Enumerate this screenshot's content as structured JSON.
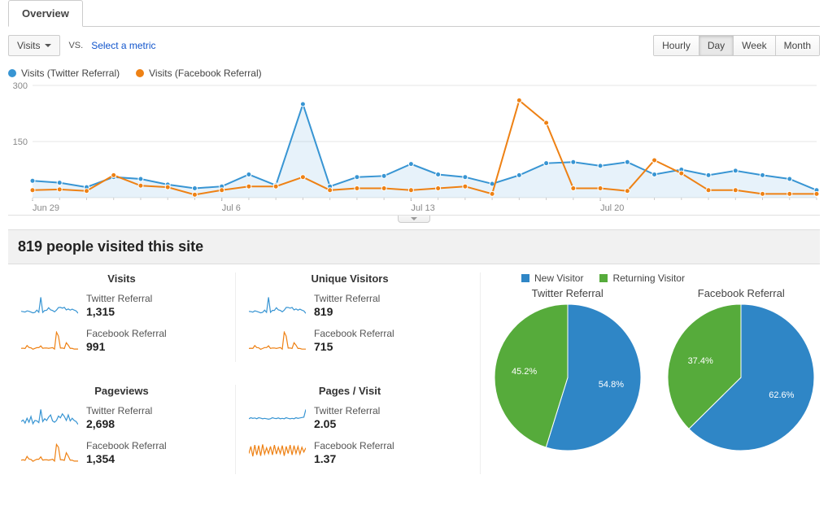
{
  "colors": {
    "twitter": "#3895d3",
    "facebook": "#ee8114",
    "new_visitor": "#2f86c6",
    "returning_visitor": "#56ab3b",
    "grid": "#e6e6e6",
    "axis_text": "#888888",
    "link": "#1155cc"
  },
  "tabs": {
    "overview": "Overview"
  },
  "controls": {
    "metric_dropdown": "Visits",
    "vs": "VS.",
    "select_metric": "Select a metric",
    "granularity": [
      "Hourly",
      "Day",
      "Week",
      "Month"
    ],
    "granularity_selected": "Day"
  },
  "main_chart": {
    "type": "line",
    "legend": [
      {
        "label": "Visits (Twitter Referral)",
        "color": "#3895d3"
      },
      {
        "label": "Visits (Facebook Referral)",
        "color": "#ee8114"
      }
    ],
    "y_ticks": [
      0,
      150,
      300
    ],
    "ylim": [
      0,
      300
    ],
    "x_tick_labels": [
      "Jun 29",
      "Jul 6",
      "Jul 13",
      "Jul 20"
    ],
    "x_tick_indices": [
      0,
      7,
      14,
      21
    ],
    "n_points": 30,
    "series": {
      "twitter": [
        45,
        40,
        28,
        55,
        50,
        35,
        25,
        30,
        62,
        33,
        250,
        30,
        55,
        58,
        90,
        62,
        55,
        37,
        60,
        92,
        95,
        85,
        95,
        62,
        75,
        60,
        72,
        60,
        50,
        20
      ],
      "facebook": [
        20,
        22,
        18,
        60,
        32,
        28,
        8,
        20,
        30,
        30,
        55,
        20,
        25,
        25,
        20,
        25,
        30,
        10,
        260,
        200,
        25,
        25,
        18,
        100,
        65,
        20,
        20,
        10,
        10,
        10
      ]
    },
    "background": "#ffffff",
    "grid_color": "#e6e6e6",
    "axis_fontsize": 11,
    "line_width": 2,
    "marker_radius": 3
  },
  "headline": "819 people visited this site",
  "metrics": [
    {
      "title": "Visits",
      "rows": [
        {
          "label": "Twitter Referral",
          "value": "1,315",
          "color": "#3895d3",
          "spark": [
            18,
            16,
            14,
            20,
            18,
            14,
            10,
            12,
            24,
            13,
            90,
            12,
            22,
            23,
            36,
            25,
            22,
            15,
            24,
            37,
            38,
            34,
            38,
            25,
            30,
            24,
            29,
            24,
            20,
            8
          ]
        },
        {
          "label": "Facebook Referral",
          "value": "991",
          "color": "#ee8114",
          "spark": [
            8,
            9,
            7,
            24,
            13,
            11,
            3,
            8,
            12,
            12,
            22,
            8,
            10,
            10,
            8,
            10,
            12,
            4,
            100,
            78,
            10,
            10,
            7,
            40,
            26,
            8,
            8,
            4,
            4,
            4
          ]
        }
      ]
    },
    {
      "title": "Unique Visitors",
      "rows": [
        {
          "label": "Twitter Referral",
          "value": "819",
          "color": "#3895d3",
          "spark": [
            14,
            13,
            11,
            16,
            14,
            11,
            8,
            10,
            19,
            10,
            72,
            10,
            18,
            18,
            29,
            20,
            18,
            12,
            19,
            30,
            30,
            27,
            30,
            20,
            24,
            19,
            23,
            19,
            16,
            6
          ]
        },
        {
          "label": "Facebook Referral",
          "value": "715",
          "color": "#ee8114",
          "spark": [
            6,
            7,
            6,
            19,
            10,
            9,
            2,
            6,
            10,
            10,
            18,
            6,
            8,
            8,
            6,
            8,
            10,
            3,
            80,
            62,
            8,
            8,
            6,
            32,
            21,
            6,
            6,
            3,
            3,
            3
          ]
        }
      ]
    },
    {
      "title": "Pageviews",
      "rows": [
        {
          "label": "Twitter Referral",
          "value": "2,698",
          "color": "#3895d3",
          "spark": [
            25,
            32,
            18,
            40,
            22,
            48,
            15,
            30,
            28,
            20,
            80,
            25,
            38,
            30,
            45,
            55,
            28,
            22,
            30,
            50,
            42,
            60,
            48,
            30,
            55,
            28,
            40,
            30,
            25,
            12
          ]
        },
        {
          "label": "Facebook Referral",
          "value": "1,354",
          "color": "#ee8114",
          "spark": [
            10,
            12,
            9,
            30,
            16,
            14,
            4,
            10,
            15,
            15,
            28,
            10,
            12,
            12,
            10,
            12,
            15,
            5,
            95,
            80,
            12,
            12,
            9,
            50,
            32,
            10,
            10,
            5,
            5,
            5
          ]
        }
      ]
    },
    {
      "title": "Pages / Visit",
      "rows": [
        {
          "label": "Twitter Referral",
          "value": "2.05",
          "color": "#3895d3",
          "spark": [
            40,
            45,
            42,
            44,
            40,
            45,
            43,
            40,
            42,
            40,
            38,
            40,
            45,
            42,
            41,
            44,
            40,
            42,
            40,
            45,
            42,
            40,
            42,
            40,
            45,
            42,
            44,
            46,
            48,
            85
          ]
        },
        {
          "label": "Facebook Referral",
          "value": "1.37",
          "color": "#ee8114",
          "spark": [
            30,
            55,
            20,
            60,
            25,
            58,
            22,
            62,
            28,
            50,
            30,
            55,
            25,
            60,
            28,
            52,
            30,
            58,
            22,
            55,
            30,
            60,
            25,
            58,
            30,
            55,
            28,
            52,
            35,
            50
          ]
        }
      ]
    }
  ],
  "pie_legend": [
    {
      "label": "New Visitor",
      "color": "#2f86c6"
    },
    {
      "label": "Returning Visitor",
      "color": "#56ab3b"
    }
  ],
  "pies": [
    {
      "title": "Twitter Referral",
      "slices": [
        {
          "label": "54.8%",
          "value": 54.8,
          "color": "#2f86c6"
        },
        {
          "label": "45.2%",
          "value": 45.2,
          "color": "#56ab3b"
        }
      ]
    },
    {
      "title": "Facebook Referral",
      "slices": [
        {
          "label": "62.6%",
          "value": 62.6,
          "color": "#2f86c6"
        },
        {
          "label": "37.4%",
          "value": 37.4,
          "color": "#56ab3b"
        }
      ]
    }
  ]
}
